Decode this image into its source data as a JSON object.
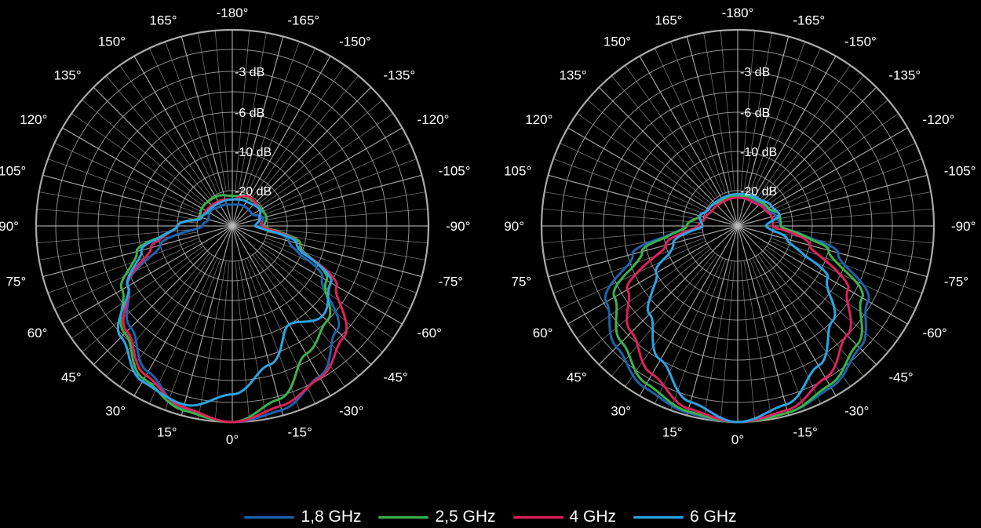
{
  "colors": {
    "background": "#000000",
    "grid": "#bdbdbd",
    "text": "#ffffff"
  },
  "legend": [
    {
      "label": "1,8 GHz",
      "color": "#1d63ad"
    },
    {
      "label": "2,5 GHz",
      "color": "#3bb24a"
    },
    {
      "label": "4 GHz",
      "color": "#e0205c"
    },
    {
      "label": "6 GHz",
      "color": "#2ba4e3"
    }
  ],
  "chart_data": [
    {
      "type": "polar-line",
      "angle_labels": [
        "-180°",
        "-165°",
        "-150°",
        "-135°",
        "-120°",
        "-105°",
        "-90°",
        "-75°",
        "-60°",
        "-45°",
        "-30°",
        "-15°",
        "0°",
        "15°",
        "30°",
        "45°",
        "60°",
        "75°",
        "90°",
        "105°",
        "120°",
        "135°",
        "150°",
        "165°"
      ],
      "radial_labels": [
        "-3 dB",
        "-6 dB",
        "-10 dB",
        "-20 dB"
      ],
      "radial_levels_db": [
        0,
        -3,
        -6,
        -10,
        -20
      ],
      "grid": true,
      "series": [
        {
          "name": "1,8 GHz",
          "color": "#1d63ad",
          "points": [
            [
              -180,
              -28
            ],
            [
              -150,
              -27
            ],
            [
              -120,
              -27
            ],
            [
              -105,
              -22
            ],
            [
              -90,
              -24
            ],
            [
              -75,
              -14
            ],
            [
              -60,
              -7
            ],
            [
              -45,
              -3.5
            ],
            [
              -30,
              -1.6
            ],
            [
              -15,
              -0.4
            ],
            [
              0,
              0
            ],
            [
              15,
              -0.5
            ],
            [
              30,
              -2
            ],
            [
              45,
              -3.8
            ],
            [
              60,
              -5.5
            ],
            [
              75,
              -10
            ],
            [
              90,
              -23
            ],
            [
              105,
              -26
            ],
            [
              120,
              -25
            ],
            [
              150,
              -27
            ],
            [
              180,
              -28
            ]
          ]
        },
        {
          "name": "2,5 GHz",
          "color": "#3bb24a",
          "points": [
            [
              -180,
              -23
            ],
            [
              -150,
              -22
            ],
            [
              -120,
              -21
            ],
            [
              -105,
              -20
            ],
            [
              -90,
              -22
            ],
            [
              -75,
              -11
            ],
            [
              -60,
              -6.5
            ],
            [
              -45,
              -4.5
            ],
            [
              -30,
              -3.5
            ],
            [
              -15,
              -1.2
            ],
            [
              0,
              0
            ],
            [
              15,
              -0.4
            ],
            [
              30,
              -1.4
            ],
            [
              45,
              -3.2
            ],
            [
              60,
              -5
            ],
            [
              75,
              -7.5
            ],
            [
              90,
              -15
            ],
            [
              105,
              -21
            ],
            [
              120,
              -20
            ],
            [
              150,
              -21
            ],
            [
              180,
              -23
            ]
          ]
        },
        {
          "name": "4 GHz",
          "color": "#e0205c",
          "points": [
            [
              -180,
              -25
            ],
            [
              -150,
              -21
            ],
            [
              -120,
              -22
            ],
            [
              -105,
              -24
            ],
            [
              -90,
              -23
            ],
            [
              -75,
              -12
            ],
            [
              -60,
              -5.5
            ],
            [
              -45,
              -2.8
            ],
            [
              -30,
              -1.5
            ],
            [
              -15,
              -0.7
            ],
            [
              0,
              0
            ],
            [
              15,
              -0.6
            ],
            [
              30,
              -1.7
            ],
            [
              45,
              -3.4
            ],
            [
              60,
              -5.5
            ],
            [
              75,
              -9
            ],
            [
              90,
              -15
            ],
            [
              105,
              -22
            ],
            [
              120,
              -23
            ],
            [
              150,
              -24
            ],
            [
              180,
              -25
            ]
          ]
        },
        {
          "name": "6 GHz",
          "color": "#2ba4e3",
          "points": [
            [
              -180,
              -25
            ],
            [
              -150,
              -24
            ],
            [
              -120,
              -22
            ],
            [
              -105,
              -24
            ],
            [
              -90,
              -27
            ],
            [
              -75,
              -12
            ],
            [
              -60,
              -6
            ],
            [
              -45,
              -5
            ],
            [
              -30,
              -6
            ],
            [
              -15,
              -3.8
            ],
            [
              0,
              -2
            ],
            [
              15,
              -0.8
            ],
            [
              30,
              -1.2
            ],
            [
              45,
              -2.8
            ],
            [
              60,
              -5.5
            ],
            [
              75,
              -8
            ],
            [
              90,
              -15
            ],
            [
              105,
              -22
            ],
            [
              120,
              -24
            ],
            [
              150,
              -25
            ],
            [
              180,
              -25
            ]
          ]
        }
      ]
    },
    {
      "type": "polar-line",
      "angle_labels": [
        "-180°",
        "-165°",
        "-150°",
        "-135°",
        "-120°",
        "-105°",
        "-90°",
        "-75°",
        "-60°",
        "-45°",
        "-30°",
        "-15°",
        "0°",
        "15°",
        "30°",
        "45°",
        "60°",
        "75°",
        "90°",
        "105°",
        "120°",
        "135°",
        "150°",
        "165°"
      ],
      "radial_labels": [
        "-3 dB",
        "-6 dB",
        "-10 dB",
        "-20 dB"
      ],
      "radial_levels_db": [
        0,
        -3,
        -6,
        -10,
        -20
      ],
      "grid": true,
      "series": [
        {
          "name": "1,8 GHz",
          "color": "#1d63ad",
          "points": [
            [
              -180,
              -23
            ],
            [
              -150,
              -23
            ],
            [
              -120,
              -21
            ],
            [
              -105,
              -19
            ],
            [
              -90,
              -18
            ],
            [
              -75,
              -7
            ],
            [
              -60,
              -3.3
            ],
            [
              -45,
              -1.7
            ],
            [
              -30,
              -0.7
            ],
            [
              -15,
              -0.2
            ],
            [
              0,
              0
            ],
            [
              15,
              -0.2
            ],
            [
              30,
              -0.7
            ],
            [
              45,
              -1.8
            ],
            [
              60,
              -3.2
            ],
            [
              75,
              -6.5
            ],
            [
              90,
              -16
            ],
            [
              105,
              -19
            ],
            [
              120,
              -21
            ],
            [
              150,
              -23
            ],
            [
              180,
              -23
            ]
          ]
        },
        {
          "name": "2,5 GHz",
          "color": "#3bb24a",
          "points": [
            [
              -180,
              -23
            ],
            [
              -150,
              -22
            ],
            [
              -120,
              -20
            ],
            [
              -105,
              -18
            ],
            [
              -90,
              -18
            ],
            [
              -75,
              -8
            ],
            [
              -60,
              -3.8
            ],
            [
              -45,
              -2
            ],
            [
              -30,
              -0.9
            ],
            [
              -15,
              -0.2
            ],
            [
              0,
              0
            ],
            [
              15,
              -0.3
            ],
            [
              30,
              -1
            ],
            [
              45,
              -2.3
            ],
            [
              60,
              -3.9
            ],
            [
              75,
              -7.5
            ],
            [
              90,
              -16
            ],
            [
              105,
              -19
            ],
            [
              120,
              -21
            ],
            [
              150,
              -23
            ],
            [
              180,
              -23
            ]
          ]
        },
        {
          "name": "4 GHz",
          "color": "#e0205c",
          "points": [
            [
              -180,
              -24
            ],
            [
              -150,
              -24
            ],
            [
              -120,
              -22
            ],
            [
              -105,
              -20
            ],
            [
              -90,
              -20
            ],
            [
              -75,
              -10
            ],
            [
              -60,
              -5
            ],
            [
              -45,
              -3
            ],
            [
              -30,
              -1.5
            ],
            [
              -15,
              -0.4
            ],
            [
              0,
              0
            ],
            [
              15,
              -0.5
            ],
            [
              30,
              -1.8
            ],
            [
              45,
              -3.3
            ],
            [
              60,
              -5
            ],
            [
              75,
              -10
            ],
            [
              90,
              -19
            ],
            [
              105,
              -21
            ],
            [
              120,
              -23
            ],
            [
              150,
              -24
            ],
            [
              180,
              -24
            ]
          ]
        },
        {
          "name": "6 GHz",
          "color": "#2ba4e3",
          "points": [
            [
              -180,
              -22
            ],
            [
              -150,
              -21
            ],
            [
              -120,
              -19
            ],
            [
              -105,
              -18
            ],
            [
              -90,
              -24
            ],
            [
              -75,
              -16
            ],
            [
              -60,
              -7
            ],
            [
              -45,
              -4.5
            ],
            [
              -30,
              -2.5
            ],
            [
              -15,
              -0.8
            ],
            [
              0,
              0
            ],
            [
              15,
              -1
            ],
            [
              30,
              -3
            ],
            [
              45,
              -5.2
            ],
            [
              60,
              -8
            ],
            [
              75,
              -12
            ],
            [
              90,
              -20
            ],
            [
              105,
              -19
            ],
            [
              120,
              -21
            ],
            [
              150,
              -22
            ],
            [
              180,
              -22
            ]
          ]
        }
      ]
    }
  ]
}
